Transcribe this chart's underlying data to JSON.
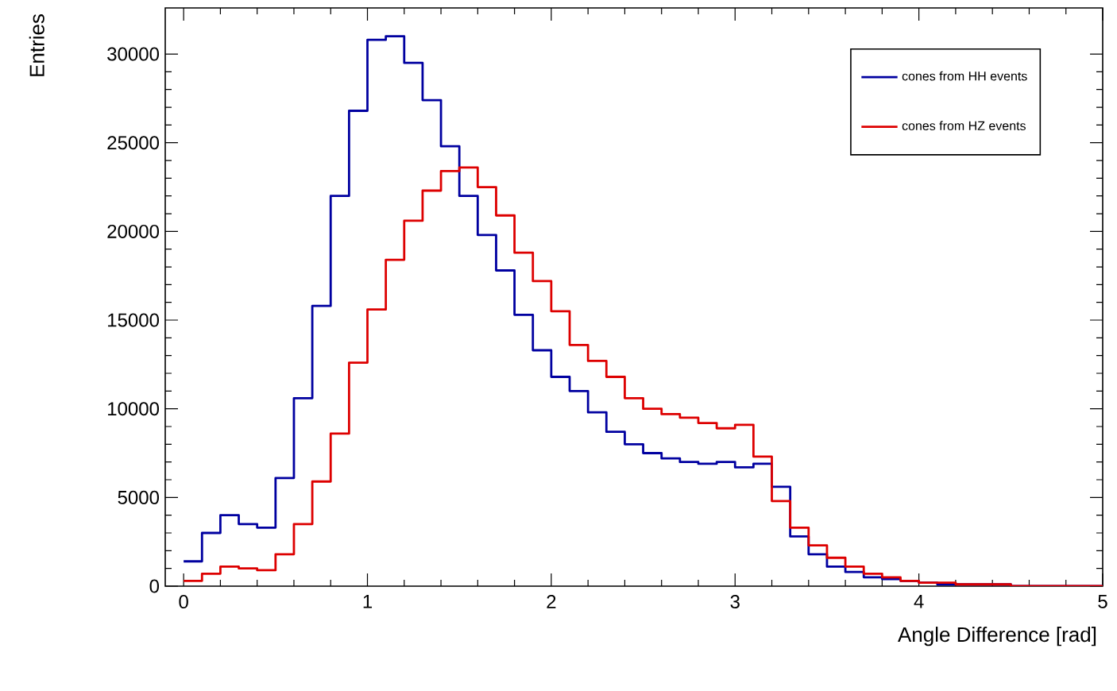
{
  "chart_data": {
    "type": "histogram",
    "xlabel": "Angle Difference [rad]",
    "ylabel": "Entries",
    "bins": [
      0,
      0.1,
      0.2,
      0.3,
      0.4,
      0.5,
      0.6,
      0.7,
      0.8,
      0.9,
      1.0,
      1.1,
      1.2,
      1.3,
      1.4,
      1.5,
      1.6,
      1.7,
      1.8,
      1.9,
      2.0,
      2.1,
      2.2,
      2.3,
      2.4,
      2.5,
      2.6,
      2.7,
      2.8,
      2.9,
      3.0,
      3.1,
      3.2,
      3.3,
      3.4,
      3.5,
      3.6,
      3.7,
      3.8,
      3.9,
      4.0,
      4.1,
      4.2,
      4.3,
      4.4,
      4.5,
      4.6,
      4.7,
      4.8,
      4.9,
      5.0
    ],
    "series": [
      {
        "name": "cones from HH events",
        "color": "#0000a0",
        "values": [
          1400,
          3000,
          4000,
          3500,
          3300,
          6100,
          10600,
          15800,
          22000,
          26800,
          30800,
          31000,
          29500,
          27400,
          24800,
          22000,
          19800,
          17800,
          15300,
          13300,
          11800,
          11000,
          9800,
          8700,
          8000,
          7500,
          7200,
          7000,
          6900,
          7000,
          6700,
          6900,
          5600,
          2800,
          1800,
          1100,
          800,
          500,
          400,
          300,
          200,
          100,
          100,
          100,
          100,
          0,
          0,
          0,
          0,
          0
        ]
      },
      {
        "name": "cones from HZ events",
        "color": "#dd0000",
        "values": [
          300,
          700,
          1100,
          1000,
          900,
          1800,
          3500,
          5900,
          8600,
          12600,
          15600,
          18400,
          20600,
          22300,
          23400,
          23600,
          22500,
          20900,
          18800,
          17200,
          15500,
          13600,
          12700,
          11800,
          10600,
          10000,
          9700,
          9500,
          9200,
          8900,
          9100,
          7300,
          4800,
          3300,
          2300,
          1600,
          1100,
          700,
          500,
          300,
          200,
          200,
          100,
          100,
          100,
          0,
          0,
          0,
          0,
          0
        ]
      }
    ],
    "xlim": [
      -0.1,
      5
    ],
    "ylim": [
      0,
      32600
    ],
    "xticks": [
      0,
      1,
      2,
      3,
      4,
      5
    ],
    "yticks": [
      0,
      5000,
      10000,
      15000,
      20000,
      25000,
      30000
    ],
    "legend": "top right"
  }
}
